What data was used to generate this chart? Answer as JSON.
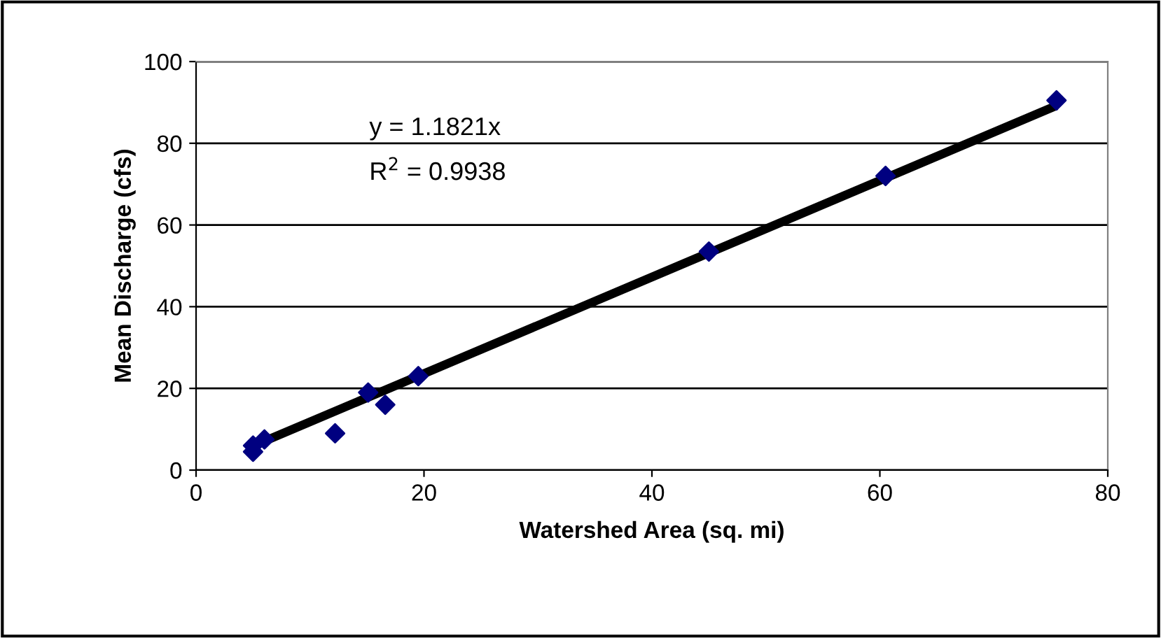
{
  "chart_data": {
    "type": "scatter",
    "xlabel": "Watershed Area (sq. mi)",
    "ylabel": "Mean Discharge (cfs)",
    "x": [
      5,
      5,
      6,
      12.2,
      15.1,
      16.6,
      19.5,
      45,
      60.5,
      75.5
    ],
    "series": [
      {
        "color": "#000080",
        "marker": "diamond",
        "values": [
          4.5,
          6,
          7.5,
          9,
          19,
          16,
          23,
          53.5,
          72,
          90.5
        ]
      },
      {
        "type": "line",
        "color": "#000000",
        "x": [
          5,
          75.5
        ],
        "values": [
          5.9,
          89.2
        ],
        "marker": "none"
      }
    ],
    "annotations": [
      "y = 1.1821x",
      "R$^{2}$ = 0.9938"
    ],
    "xlim": [
      0,
      80
    ],
    "xticks": [
      0,
      20,
      40,
      60,
      80
    ],
    "ylim": [
      0,
      100
    ],
    "yticks": [
      0,
      20,
      40,
      60,
      80,
      100
    ],
    "grid": "y",
    "legend": false
  }
}
